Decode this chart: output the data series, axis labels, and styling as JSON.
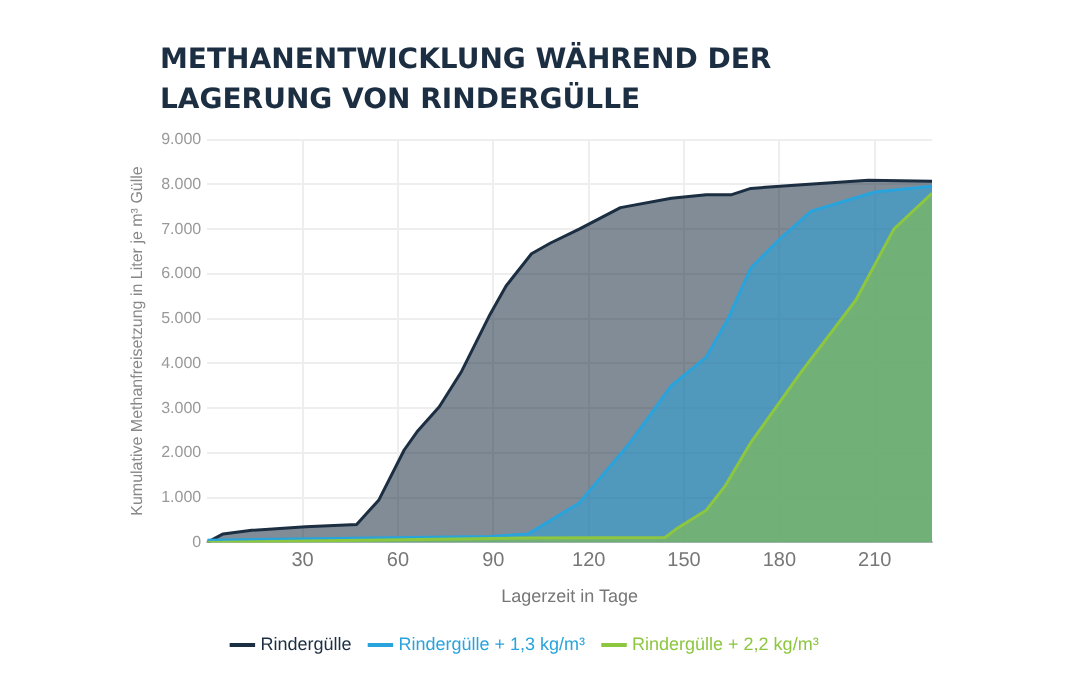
{
  "chart_data": {
    "type": "area",
    "title": "METHANENTWICKLUNG WÄHREND DER LAGERUNG VON RINDERGÜLLE",
    "xlabel": "Lagerzeit in Tage",
    "ylabel": "Kumulative Methanfreisetzung in Liter je m³ Gülle",
    "xlim": [
      0,
      228
    ],
    "xticks": [
      30,
      60,
      90,
      120,
      150,
      180,
      210
    ],
    "ylim": [
      0,
      9000
    ],
    "yticks": [
      {
        "value": 0,
        "label": "0"
      },
      {
        "value": 1000,
        "label": "1.000"
      },
      {
        "value": 2000,
        "label": "2.000"
      },
      {
        "value": 3000,
        "label": "3.000"
      },
      {
        "value": 4000,
        "label": "4.000"
      },
      {
        "value": 5000,
        "label": "5.000"
      },
      {
        "value": 6000,
        "label": "6.000"
      },
      {
        "value": 7000,
        "label": "7.000"
      },
      {
        "value": 8000,
        "label": "8.000"
      },
      {
        "value": 9000,
        "label": "9.000"
      }
    ],
    "grid": true,
    "legend": "bottom",
    "marker": "none",
    "series": [
      {
        "name": "Rindergülle",
        "color": "#1c2e42",
        "x": [
          0,
          5,
          14,
          31,
          47,
          54,
          62,
          66,
          73,
          80,
          89,
          94,
          102,
          108,
          117,
          130,
          146,
          157,
          165,
          171,
          187,
          208,
          228
        ],
        "values": [
          0,
          190,
          270,
          350,
          400,
          950,
          2070,
          2470,
          3030,
          3820,
          5100,
          5730,
          6450,
          6690,
          7000,
          7480,
          7690,
          7770,
          7770,
          7910,
          7990,
          8090,
          8070
        ]
      },
      {
        "name": "Rindergülle + 1,3 kg/m³",
        "color": "#29a3dc",
        "x": [
          0,
          89,
          101,
          117,
          133,
          146,
          157,
          164,
          171,
          180,
          190,
          210,
          228
        ],
        "values": [
          50,
          130,
          190,
          880,
          2230,
          3500,
          4140,
          5020,
          6130,
          6770,
          7400,
          7830,
          7960
        ]
      },
      {
        "name": "Rindergülle + 2,2 kg/m³",
        "color": "#8dc63f",
        "x": [
          0,
          100,
          144,
          148,
          157,
          163,
          171,
          187,
          204,
          216,
          228
        ],
        "values": [
          0,
          100,
          110,
          320,
          720,
          1270,
          2230,
          3820,
          5410,
          7000,
          7800
        ]
      }
    ]
  }
}
